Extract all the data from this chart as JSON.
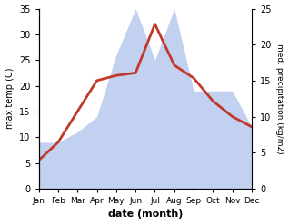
{
  "months": [
    "Jan",
    "Feb",
    "Mar",
    "Apr",
    "May",
    "Jun",
    "Jul",
    "Aug",
    "Sep",
    "Oct",
    "Nov",
    "Dec"
  ],
  "month_positions": [
    0,
    1,
    2,
    3,
    4,
    5,
    6,
    7,
    8,
    9,
    10,
    11
  ],
  "temperature": [
    5.5,
    9.0,
    15.0,
    21.0,
    22.0,
    22.5,
    32.0,
    24.0,
    21.5,
    17.0,
    14.0,
    12.0
  ],
  "precip_left_scale": [
    9.0,
    9.0,
    11.0,
    14.0,
    26.0,
    35.0,
    25.0,
    35.0,
    19.0,
    19.0,
    19.0,
    12.0
  ],
  "temp_color": "#c0392b",
  "precip_color": "#b8c9ed",
  "temp_ylim": [
    0,
    35
  ],
  "precip_ylim": [
    0,
    25
  ],
  "temp_yticks": [
    0,
    5,
    10,
    15,
    20,
    25,
    30,
    35
  ],
  "precip_yticks": [
    0,
    5,
    10,
    15,
    20,
    25
  ],
  "xlabel": "date (month)",
  "ylabel_left": "max temp (C)",
  "ylabel_right": "med. precipitation (kg/m2)",
  "bg_color": "#ffffff",
  "linewidth": 2.0
}
